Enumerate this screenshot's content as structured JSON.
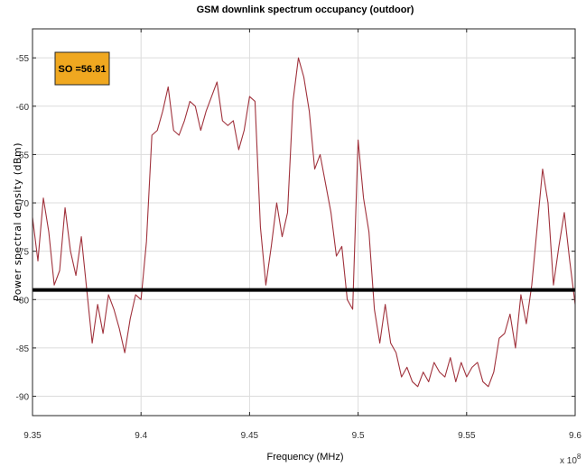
{
  "chart_data": {
    "type": "line",
    "title": "GSM downlink spectrum occupancy (outdoor)",
    "xlabel": "Frequency (MHz)",
    "ylabel": "Power spectral density (dBm)",
    "x_exponent_label": "x 10",
    "x_exponent_power": "8",
    "xlim": [
      9.35,
      9.6
    ],
    "ylim": [
      -92,
      -52
    ],
    "x_ticks": [
      "9.35",
      "9.4",
      "9.45",
      "9.5",
      "9.55",
      "9.6"
    ],
    "y_ticks": [
      "-55",
      "-60",
      "-65",
      "-70",
      "-75",
      "-80",
      "-85",
      "-90"
    ],
    "x_tick_values": [
      9.35,
      9.4,
      9.45,
      9.5,
      9.55,
      9.6
    ],
    "y_tick_values": [
      -55,
      -60,
      -65,
      -70,
      -75,
      -80,
      -85,
      -90
    ],
    "grid": true,
    "threshold": {
      "y": -79,
      "color": "#000000"
    },
    "annotation": {
      "text": "SO =56.81",
      "bg_color": "#f0a820"
    },
    "series_color": "#a0323c",
    "series": [
      {
        "x": [
          9.35,
          9.3525,
          9.355,
          9.3575,
          9.36,
          9.3625,
          9.365,
          9.3675,
          9.37,
          9.3725,
          9.375,
          9.3775,
          9.38,
          9.3825,
          9.385,
          9.3875,
          9.39,
          9.3925,
          9.395,
          9.3975,
          9.4,
          9.4025,
          9.405,
          9.4075,
          9.41,
          9.4125,
          9.415,
          9.4175,
          9.42,
          9.4225,
          9.425,
          9.4275,
          9.43,
          9.4325,
          9.435,
          9.4375,
          9.44,
          9.4425,
          9.445,
          9.4475,
          9.45,
          9.4525,
          9.455,
          9.4575,
          9.46,
          9.4625,
          9.465,
          9.4675,
          9.47,
          9.4725,
          9.475,
          9.4775,
          9.48,
          9.4825,
          9.485,
          9.4875,
          9.49,
          9.4925,
          9.495,
          9.4975,
          9.5,
          9.5025,
          9.505,
          9.5075,
          9.51,
          9.5125,
          9.515,
          9.5175,
          9.52,
          9.5225,
          9.525,
          9.5275,
          9.53,
          9.5325,
          9.535,
          9.5375,
          9.54,
          9.5425,
          9.545,
          9.5475,
          9.55,
          9.5525,
          9.555,
          9.5575,
          9.56,
          9.5625,
          9.565,
          9.5675,
          9.57,
          9.5725,
          9.575,
          9.5775,
          9.58,
          9.5825,
          9.585,
          9.5875,
          9.59,
          9.5925,
          9.595,
          9.5975,
          9.6
        ],
        "y": [
          -71.5,
          -76,
          -69.5,
          -73,
          -78.5,
          -77,
          -70.5,
          -75,
          -77.5,
          -73.5,
          -79,
          -84.5,
          -80.5,
          -83.5,
          -79.5,
          -81,
          -83,
          -85.5,
          -82,
          -79.5,
          -80,
          -74,
          -63,
          -62.5,
          -60.5,
          -58,
          -62.5,
          -63,
          -61.5,
          -59.5,
          -60,
          -62.5,
          -60.5,
          -59,
          -57.5,
          -61.5,
          -62,
          -61.5,
          -64.5,
          -62.5,
          -59,
          -59.5,
          -72.5,
          -78.5,
          -74.5,
          -70,
          -73.5,
          -71,
          -59.5,
          -55,
          -57,
          -60.5,
          -66.5,
          -65,
          -68,
          -71,
          -75.5,
          -74.5,
          -80,
          -81,
          -63.5,
          -69.5,
          -73,
          -81,
          -84.5,
          -80.5,
          -84.5,
          -85.5,
          -88,
          -87,
          -88.5,
          -89,
          -87.5,
          -88.5,
          -86.5,
          -87.5,
          -88,
          -86,
          -88.5,
          -86.5,
          -88,
          -87,
          -86.5,
          -88.5,
          -89,
          -87.5,
          -84,
          -83.5,
          -81.5,
          -85,
          -79.5,
          -82.5,
          -78.5,
          -72.5,
          -66.5,
          -70,
          -78.5,
          -74.5,
          -71,
          -76,
          -80.5
        ]
      }
    ]
  }
}
